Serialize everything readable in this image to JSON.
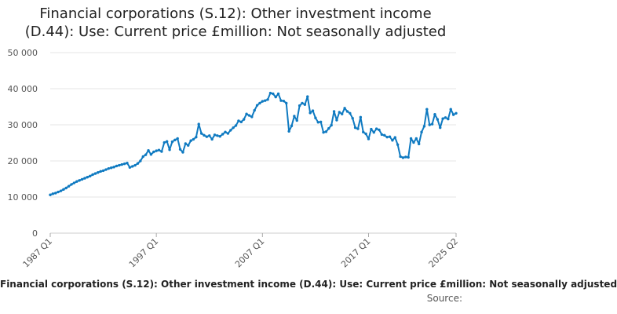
{
  "colors": {
    "series": "#0f7ac1",
    "grid": "#e6e6e6",
    "axis_text": "#555555",
    "title_text": "#222222"
  },
  "chart_data": {
    "type": "line",
    "title": "Financial corporations (S.12): Other investment income (D.44): Use: Current price £million: Not seasonally adjusted",
    "title_lines": [
      "Financial corporations (S.12): Other investment income",
      "(D.44): Use: Current price £million: Not seasonally adjusted"
    ],
    "xlabel": "",
    "ylabel": "",
    "ylim": [
      0,
      50000
    ],
    "y_ticks": [
      0,
      10000,
      20000,
      30000,
      40000,
      50000
    ],
    "y_tick_labels": [
      "0",
      "10 000",
      "20 000",
      "30 000",
      "40 000",
      "50 000"
    ],
    "x_tick_labels": [
      "1987 Q1",
      "1997 Q1",
      "2007 Q1",
      "2017 Q1",
      "2025 Q2"
    ],
    "x_tick_indices": [
      0,
      40,
      80,
      120,
      153
    ],
    "start_period": "1987 Q1",
    "end_period": "2025 Q2",
    "legend_label": "Financial corporations (S.12): Other investment income (D.44): Use: Current price £million: Not seasonally adjusted",
    "source_label": "Source:",
    "series": [
      {
        "name": "Financial corporations (S.12): Other investment income (D.44): Use: Current price £million: Not seasonally adjusted",
        "values": [
          10600,
          10900,
          11100,
          11400,
          11700,
          12100,
          12500,
          13000,
          13500,
          13900,
          14300,
          14600,
          14900,
          15200,
          15500,
          15800,
          16200,
          16500,
          16800,
          17100,
          17300,
          17600,
          17900,
          18100,
          18300,
          18600,
          18800,
          19000,
          19200,
          19400,
          18200,
          18500,
          18800,
          19300,
          20000,
          21200,
          21700,
          22900,
          21800,
          22500,
          22800,
          23000,
          22600,
          25100,
          25400,
          23100,
          25300,
          25800,
          26200,
          23200,
          22400,
          24800,
          24300,
          25600,
          26000,
          26600,
          30200,
          27600,
          27100,
          26700,
          27000,
          26000,
          27200,
          27000,
          26800,
          27400,
          28000,
          27600,
          28500,
          29200,
          29800,
          31100,
          30800,
          31500,
          33000,
          32600,
          32200,
          34000,
          35400,
          36000,
          36500,
          36700,
          37000,
          38800,
          38600,
          37700,
          38600,
          36700,
          36600,
          36000,
          28200,
          29700,
          32400,
          31200,
          35300,
          36000,
          35600,
          37800,
          33300,
          33900,
          31900,
          30700,
          30800,
          27900,
          28100,
          29000,
          29900,
          33700,
          31300,
          33500,
          33000,
          34600,
          33700,
          33200,
          31800,
          29200,
          28900,
          32100,
          28000,
          27500,
          26100,
          28800,
          27900,
          28900,
          28600,
          27300,
          27100,
          26600,
          26700,
          25700,
          26500,
          24500,
          21200,
          20900,
          21100,
          21000,
          26200,
          25100,
          26200,
          24700,
          28000,
          29600,
          34300,
          30000,
          30200,
          32900,
          31500,
          29200,
          31700,
          32000,
          31600,
          34300,
          32800,
          33200
        ]
      }
    ]
  }
}
